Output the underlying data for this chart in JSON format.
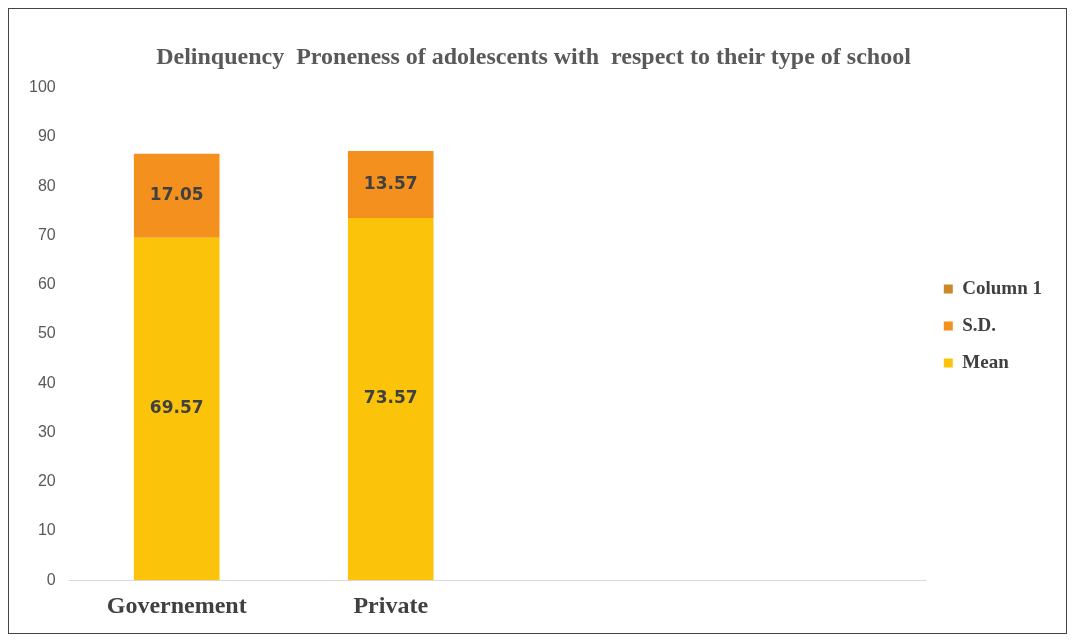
{
  "chart_data": {
    "type": "bar",
    "title": "Delinquency  Proneness of adolescents with  respect to their type of school",
    "categories": [
      "Governement",
      "Private",
      null,
      null
    ],
    "stacked": true,
    "series": [
      {
        "name": "Mean",
        "color": "#fcc30b",
        "values": [
          69.57,
          73.57,
          null,
          null
        ]
      },
      {
        "name": "S.D.",
        "color": "#f4901e",
        "values": [
          17.05,
          13.57,
          null,
          null
        ]
      },
      {
        "name": "Column 1",
        "color": "#c9882a",
        "values": [
          null,
          null,
          null,
          null
        ]
      }
    ],
    "ylim": [
      0,
      100
    ],
    "yticks": [
      0,
      10,
      20,
      30,
      40,
      50,
      60,
      70,
      80,
      90,
      100
    ],
    "grid": false,
    "legend": "right",
    "data_labels": true
  }
}
